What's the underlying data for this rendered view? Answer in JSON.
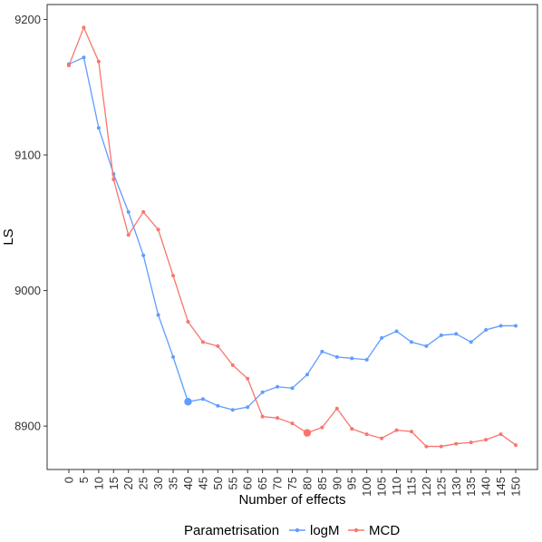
{
  "chart_data": {
    "type": "line",
    "title": "",
    "xlabel": "Number of effects",
    "ylabel": "LS",
    "x": [
      0,
      5,
      10,
      15,
      20,
      25,
      30,
      35,
      40,
      45,
      50,
      55,
      60,
      65,
      70,
      75,
      80,
      85,
      90,
      95,
      100,
      105,
      110,
      115,
      120,
      125,
      130,
      135,
      140,
      145,
      150
    ],
    "x_tick_labels": [
      "0",
      "5",
      "10",
      "15",
      "20",
      "25",
      "30",
      "35",
      "40",
      "45",
      "50",
      "55",
      "60",
      "65",
      "70",
      "75",
      "80",
      "85",
      "90",
      "95",
      "100",
      "105",
      "110",
      "115",
      "120",
      "125",
      "130",
      "135",
      "140",
      "145",
      "150"
    ],
    "y_tick_labels": [
      "8900",
      "9000",
      "9100",
      "9200"
    ],
    "y_ticks": [
      8900,
      9000,
      9100,
      9200
    ],
    "ylim": [
      8868,
      9211
    ],
    "grid": false,
    "legend": {
      "title": "Parametrisation",
      "position": "bottom"
    },
    "series": [
      {
        "name": "logM",
        "color": "#619CFF",
        "values": [
          9167,
          9172,
          9120,
          9086,
          9058,
          9026,
          8982,
          8951,
          8918,
          8920,
          8915,
          8912,
          8914,
          8925,
          8929,
          8928,
          8938,
          8955,
          8951,
          8950,
          8949,
          8965,
          8970,
          8962,
          8959,
          8967,
          8968,
          8962,
          8971,
          8974,
          8974
        ],
        "highlight_index": 8
      },
      {
        "name": "MCD",
        "color": "#F8766D",
        "values": [
          9166,
          9194,
          9169,
          9082,
          9041,
          9058,
          9045,
          9011,
          8977,
          8962,
          8959,
          8945,
          8935,
          8907,
          8906,
          8902,
          8895,
          8899,
          8913,
          8898,
          8894,
          8891,
          8897,
          8896,
          8885,
          8885,
          8887,
          8888,
          8890,
          8894,
          8886
        ],
        "highlight_index": 16
      }
    ]
  }
}
